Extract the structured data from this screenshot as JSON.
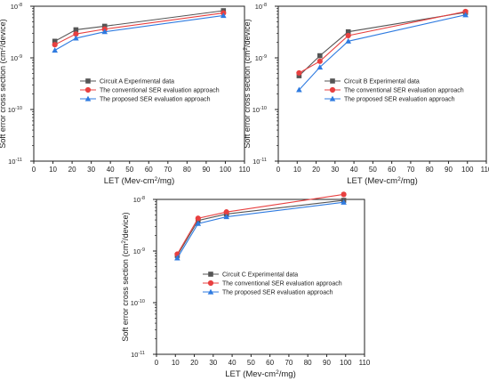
{
  "colors": {
    "series_a": "#555555",
    "series_b": "#e84040",
    "series_c": "#2f7be0",
    "axis": "#222222"
  },
  "common": {
    "xlabel": "LET (Mev-cm",
    "xlabel_sup": "2",
    "xlabel_tail": "/mg)",
    "ylabel": "Soft error cross section (cm",
    "ylabel_sup": "2",
    "ylabel_tail": "/device)"
  },
  "chart_data": [
    {
      "type": "line",
      "y_scale": "log",
      "xlim": [
        0,
        110
      ],
      "ylim": [
        1e-11,
        1e-08
      ],
      "x_ticks": [
        0,
        10,
        20,
        30,
        40,
        50,
        60,
        70,
        80,
        90,
        100,
        110
      ],
      "y_ticks": [
        {
          "label_base": "10",
          "label_exp": "-11"
        },
        {
          "label_base": "10",
          "label_exp": "-10"
        },
        {
          "label_base": "10",
          "label_exp": "-9"
        },
        {
          "label_base": "10",
          "label_exp": "-8"
        }
      ],
      "legend_placement": "middle-left",
      "x": [
        11,
        22,
        37,
        99
      ],
      "series": [
        {
          "name": "Circuit A Experimental data",
          "marker": "square",
          "color": "#555555",
          "values": [
            2.1e-09,
            3.5e-09,
            4.1e-09,
            8.2e-09
          ]
        },
        {
          "name": "The conventional SER evaluation approach",
          "marker": "circle",
          "color": "#e84040",
          "values": [
            1.8e-09,
            2.9e-09,
            3.6e-09,
            7.4e-09
          ]
        },
        {
          "name": "The proposed SER evaluation approach",
          "marker": "triangle",
          "color": "#2f7be0",
          "values": [
            1.4e-09,
            2.4e-09,
            3.2e-09,
            6.6e-09
          ]
        }
      ]
    },
    {
      "type": "line",
      "y_scale": "log",
      "xlim": [
        0,
        110
      ],
      "ylim": [
        1e-11,
        1e-08
      ],
      "x_ticks": [
        0,
        10,
        20,
        30,
        40,
        50,
        60,
        70,
        80,
        90,
        100,
        110
      ],
      "y_ticks": [
        {
          "label_base": "10",
          "label_exp": "-11"
        },
        {
          "label_base": "10",
          "label_exp": "-10"
        },
        {
          "label_base": "10",
          "label_exp": "-9"
        },
        {
          "label_base": "10",
          "label_exp": "-8"
        }
      ],
      "legend_placement": "middle-left",
      "x": [
        11,
        22,
        37,
        99
      ],
      "series": [
        {
          "name": "Circuit B Experimental data",
          "marker": "square",
          "color": "#555555",
          "values": [
            4.5e-10,
            1.1e-09,
            3.2e-09,
            7.6e-09
          ]
        },
        {
          "name": "The conventional SER evaluation approach",
          "marker": "circle",
          "color": "#e84040",
          "values": [
            5.1e-10,
            8.6e-10,
            2.7e-09,
            7.9e-09
          ]
        },
        {
          "name": "The proposed SER evaluation approach",
          "marker": "triangle",
          "color": "#2f7be0",
          "values": [
            2.4e-10,
            6.6e-10,
            2.1e-09,
            6.8e-09
          ]
        }
      ]
    },
    {
      "type": "line",
      "y_scale": "log",
      "xlim": [
        0,
        110
      ],
      "ylim": [
        1e-11,
        1e-08
      ],
      "x_ticks": [
        0,
        10,
        20,
        30,
        40,
        50,
        60,
        70,
        80,
        90,
        100,
        110
      ],
      "y_ticks": [
        {
          "label_base": "10",
          "label_exp": "-11"
        },
        {
          "label_base": "10",
          "label_exp": "-10"
        },
        {
          "label_base": "10",
          "label_exp": "-9"
        },
        {
          "label_base": "10",
          "label_exp": "-8"
        }
      ],
      "legend_placement": "middle-left",
      "x": [
        11,
        22,
        37,
        99
      ],
      "series": [
        {
          "name": "Circuit C Experimental data",
          "marker": "square",
          "color": "#555555",
          "values": [
            8.2e-10,
            3.9e-09,
            5.2e-09,
            9.6e-09
          ]
        },
        {
          "name": "The conventional SER evaluation approach",
          "marker": "circle",
          "color": "#e84040",
          "values": [
            8.7e-10,
            4.3e-09,
            5.7e-09,
            1.25e-08
          ]
        },
        {
          "name": "The proposed SER evaluation approach",
          "marker": "triangle",
          "color": "#2f7be0",
          "values": [
            7.3e-10,
            3.4e-09,
            4.6e-09,
            8.8e-09
          ]
        }
      ]
    }
  ]
}
